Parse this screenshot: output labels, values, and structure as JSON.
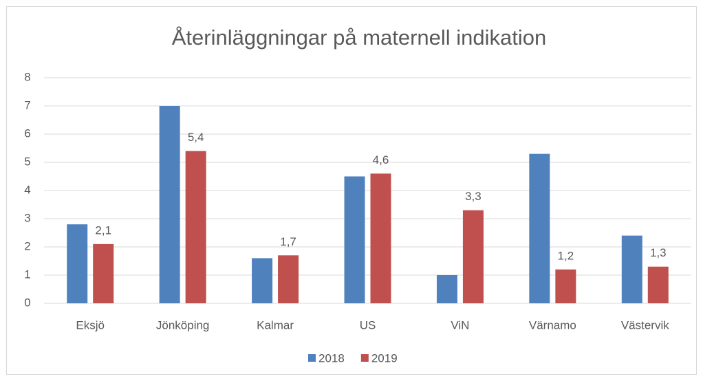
{
  "chart_data": {
    "type": "bar",
    "title": "Återinläggningar på maternell indikation",
    "categories": [
      "Eksjö",
      "Jönköping",
      "Kalmar",
      "US",
      "ViN",
      "Värnamo",
      "Västervik"
    ],
    "series": [
      {
        "name": "2018",
        "color": "#4f81bd",
        "values": [
          2.8,
          7.0,
          1.6,
          4.5,
          1.0,
          5.3,
          2.4
        ]
      },
      {
        "name": "2019",
        "color": "#c0504d",
        "values": [
          2.1,
          5.4,
          1.7,
          4.6,
          3.3,
          1.2,
          1.3
        ],
        "value_labels": [
          "2,1",
          "5,4",
          "1,7",
          "4,6",
          "3,3",
          "1,2",
          "1,3"
        ]
      }
    ],
    "ylim": [
      0,
      8
    ],
    "yticks": [
      0,
      1,
      2,
      3,
      4,
      5,
      6,
      7,
      8
    ],
    "grid": true,
    "legend": "bottom"
  }
}
